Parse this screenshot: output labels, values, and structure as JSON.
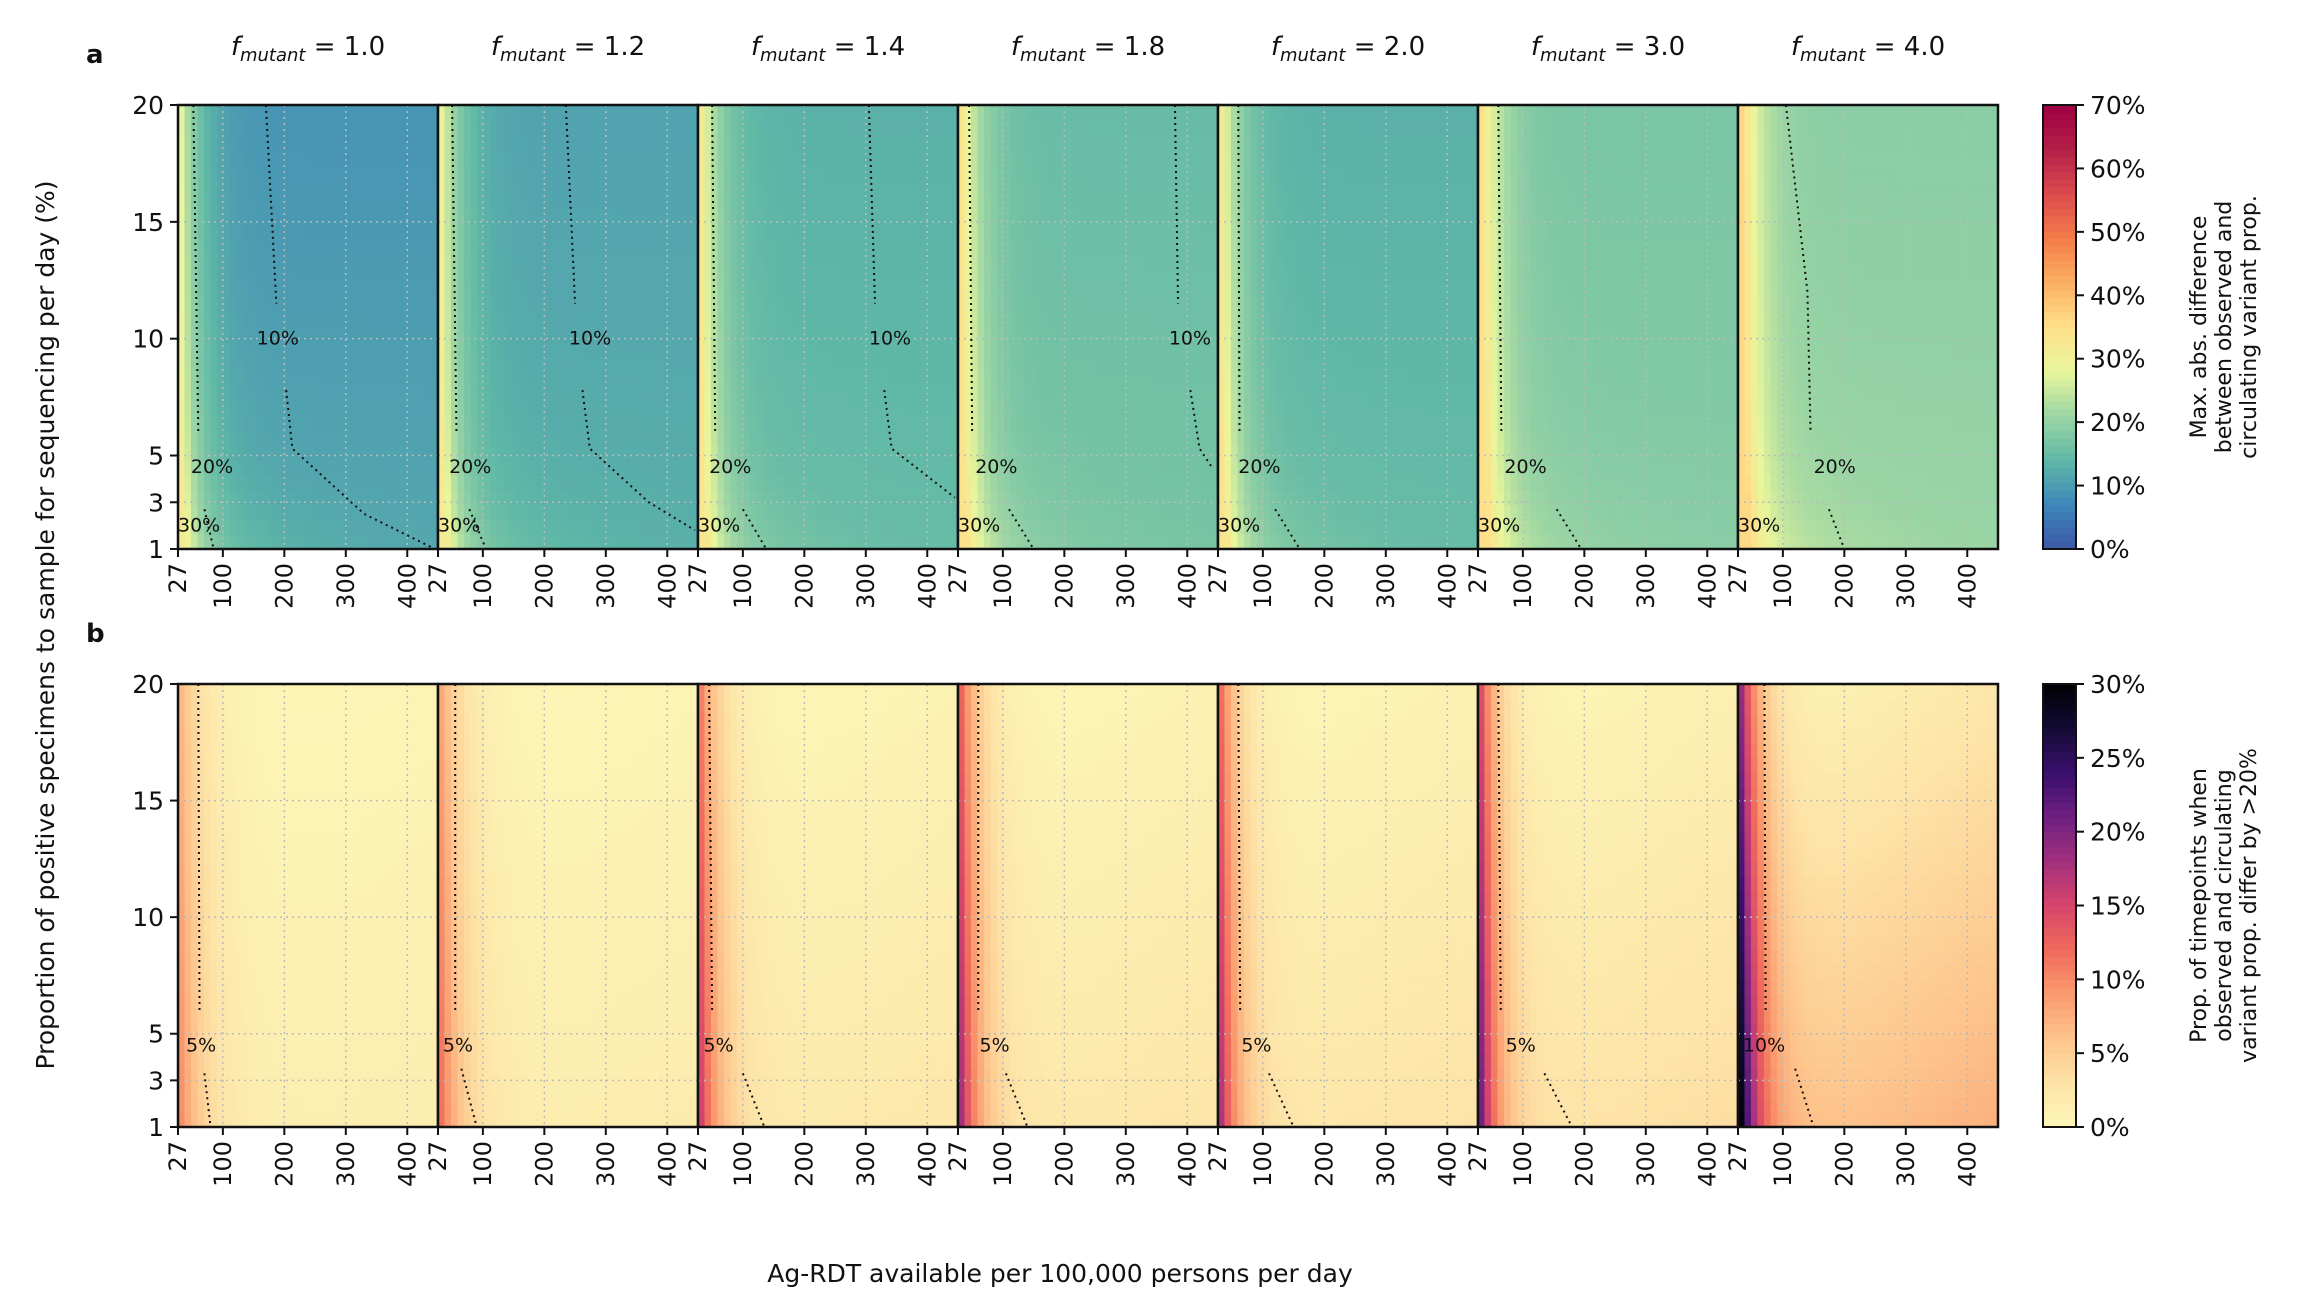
{
  "figure": {
    "shared_ylabel": "Proportion of positive specimens to sample for sequencing per day (%)",
    "shared_xlabel": "Ag-RDT available per 100,000 persons per day"
  },
  "chart_data": [
    {
      "type": "heatmap",
      "panel_label": "a",
      "xlabel": "Ag-RDT available per 100,000 persons per day",
      "ylabel": "Proportion of positive specimens to sample for sequencing per day (%)",
      "x_ticks": [
        27,
        100,
        200,
        300,
        400
      ],
      "y_ticks": [
        1,
        3,
        5,
        10,
        15,
        20
      ],
      "xlim": [
        27,
        450
      ],
      "ylim": [
        1,
        20
      ],
      "grid": true,
      "colorscale": "Spectral_r",
      "colorbar": {
        "label_lines": [
          "Max. abs. difference",
          "between observed and",
          "circulating variant prop."
        ],
        "min": 0,
        "max": 70,
        "ticks": [
          "0%",
          "10%",
          "20%",
          "30%",
          "40%",
          "50%",
          "60%",
          "70%"
        ],
        "colors": [
          "#3d57a5",
          "#3d86bb",
          "#5fb8a6",
          "#9bd5a4",
          "#e8f69b",
          "#fee08b",
          "#fbb062",
          "#f47c4a",
          "#dc4b4e",
          "#b41f48",
          "#9e0142"
        ]
      },
      "subplots": [
        {
          "title_main": "f",
          "title_sub": "mutant",
          "title_rest": " = 1.0",
          "low": 9,
          "base": 12,
          "edge": 28,
          "contours": [
            {
              "level": "10%",
              "points": [
                [
                  170,
                  20
                ],
                [
                  187,
                  11.5
                ]
              ],
              "points2": [
                [
                  203,
                  7.8
                ],
                [
                  213,
                  5.3
                ],
                [
                  330,
                  2.5
                ],
                [
                  445,
                  1
                ]
              ],
              "label_at": [
                155,
                10
              ]
            },
            {
              "level": "20%",
              "points": [
                [
                  52,
                  20
                ],
                [
                  60,
                  6
                ]
              ],
              "label_at": [
                48,
                4.5
              ]
            },
            {
              "level": "30%",
              "points": [
                [
                  27,
                  3.6
                ]
              ],
              "points2": [
                [
                  70,
                  2.7
                ],
                [
                  85,
                  1
                ]
              ],
              "label_at": [
                27,
                2
              ]
            }
          ]
        },
        {
          "title_main": "f",
          "title_sub": "mutant",
          "title_rest": " = 1.2",
          "low": 11,
          "base": 13,
          "edge": 28,
          "contours": [
            {
              "level": "10%",
              "points": [
                [
                  235,
                  20
                ],
                [
                  250,
                  11.5
                ]
              ],
              "points2": [
                [
                  262,
                  7.8
                ],
                [
                  274,
                  5.3
                ],
                [
                  370,
                  3
                ],
                [
                  445,
                  1.8
                ]
              ],
              "label_at": [
                240,
                10
              ]
            },
            {
              "level": "20%",
              "points": [
                [
                  50,
                  20
                ],
                [
                  57,
                  6
                ]
              ],
              "label_at": [
                45,
                4.5
              ]
            },
            {
              "level": "30%",
              "points": [
                [
                  27,
                  3.6
                ]
              ],
              "points2": [
                [
                  78,
                  2.7
                ],
                [
                  105,
                  1
                ]
              ],
              "label_at": [
                27,
                2
              ]
            }
          ]
        },
        {
          "title_main": "f",
          "title_sub": "mutant",
          "title_rest": " = 1.4",
          "low": 13,
          "base": 15,
          "edge": 29,
          "contours": [
            {
              "level": "10%",
              "points": [
                [
                  305,
                  20
                ],
                [
                  315,
                  11.5
                ]
              ],
              "points2": [
                [
                  330,
                  7.8
                ],
                [
                  342,
                  5.3
                ],
                [
                  445,
                  3.2
                ]
              ],
              "label_at": [
                305,
                10
              ]
            },
            {
              "level": "20%",
              "points": [
                [
                  50,
                  20
                ],
                [
                  55,
                  6
                ]
              ],
              "label_at": [
                45,
                4.5
              ]
            },
            {
              "level": "30%",
              "points": [
                [
                  27,
                  3.6
                ]
              ],
              "points2": [
                [
                  100,
                  2.7
                ],
                [
                  138,
                  1
                ]
              ],
              "label_at": [
                27,
                2
              ]
            }
          ]
        },
        {
          "title_main": "f",
          "title_sub": "mutant",
          "title_rest": " = 1.8",
          "low": 15,
          "base": 17,
          "edge": 30,
          "contours": [
            {
              "level": "10%",
              "points": [
                [
                  380,
                  20
                ],
                [
                  385,
                  11.5
                ]
              ],
              "points2": [
                [
                  405,
                  7.8
                ],
                [
                  420,
                  5.3
                ],
                [
                  440,
                  4.5
                ]
              ],
              "label_at": [
                370,
                10
              ]
            },
            {
              "level": "20%",
              "points": [
                [
                  45,
                  20
                ],
                [
                  50,
                  6
                ]
              ],
              "label_at": [
                55,
                4.5
              ]
            },
            {
              "level": "30%",
              "points": [
                [
                  27,
                  3.6
                ]
              ],
              "points2": [
                [
                  110,
                  2.7
                ],
                [
                  150,
                  1
                ]
              ],
              "label_at": [
                27,
                2
              ]
            }
          ]
        },
        {
          "title_main": "f",
          "title_sub": "mutant",
          "title_rest": " = 2.0",
          "low": 13,
          "base": 15,
          "edge": 30,
          "contours": [
            {
              "level": "20%",
              "points": [
                [
                  60,
                  20
                ],
                [
                  62,
                  6
                ]
              ],
              "label_at": [
                60,
                4.5
              ]
            },
            {
              "level": "30%",
              "points": [
                [
                  27,
                  3.6
                ]
              ],
              "points2": [
                [
                  120,
                  2.7
                ],
                [
                  160,
                  1
                ]
              ],
              "label_at": [
                27,
                2
              ]
            }
          ]
        },
        {
          "title_main": "f",
          "title_sub": "mutant",
          "title_rest": " = 3.0",
          "low": 17,
          "base": 19,
          "edge": 31,
          "contours": [
            {
              "level": "20%",
              "points": [
                [
                  60,
                  20
                ],
                [
                  65,
                  6
                ]
              ],
              "label_at": [
                70,
                4.5
              ]
            },
            {
              "level": "30%",
              "points": [
                [
                  27,
                  3.6
                ]
              ],
              "points2": [
                [
                  155,
                  2.7
                ],
                [
                  195,
                  1
                ]
              ],
              "label_at": [
                27,
                2
              ]
            }
          ]
        },
        {
          "title_main": "f",
          "title_sub": "mutant",
          "title_rest": " = 4.0",
          "low": 19,
          "base": 21,
          "edge": 32,
          "contours": [
            {
              "level": "20%",
              "points": [
                [
                  105,
                  20
                ],
                [
                  140,
                  12
                ],
                [
                  145,
                  6
                ]
              ],
              "label_at": [
                150,
                4.5
              ]
            },
            {
              "level": "30%",
              "points": [
                [
                  27,
                  3.6
                ]
              ],
              "points2": [
                [
                  175,
                  2.7
                ],
                [
                  200,
                  1
                ]
              ],
              "label_at": [
                27,
                2
              ]
            }
          ]
        }
      ]
    },
    {
      "type": "heatmap",
      "panel_label": "b",
      "xlabel": "Ag-RDT available per 100,000 persons per day",
      "ylabel": "Proportion of positive specimens to sample for sequencing per day (%)",
      "x_ticks": [
        27,
        100,
        200,
        300,
        400
      ],
      "y_ticks": [
        1,
        3,
        5,
        10,
        15,
        20
      ],
      "xlim": [
        27,
        450
      ],
      "ylim": [
        1,
        20
      ],
      "grid": true,
      "colorscale": "magma_r",
      "colorbar": {
        "label_lines": [
          "Prop. of timepoints when",
          "observed and circulating",
          "variant prop. differ by >20%"
        ],
        "min": 0,
        "max": 30,
        "ticks": [
          "0%",
          "5%",
          "10%",
          "15%",
          "20%",
          "25%",
          "30%"
        ],
        "colors": [
          "#fcf7b8",
          "#fde3a7",
          "#fdc48c",
          "#fa9b6e",
          "#f06a5c",
          "#d6456b",
          "#a3307e",
          "#6e2080",
          "#3a0f6e",
          "#140c35",
          "#000004"
        ]
      },
      "subplots": [
        {
          "title_main": "f",
          "title_sub": "mutant",
          "title_rest": " = 1.0",
          "peak": 10,
          "spread": 30,
          "tail": 0.5,
          "contours": [
            {
              "level": "5%",
              "points": [
                [
                  27,
                  20
                ]
              ],
              "points2": [
                [
                  60,
                  20
                ],
                [
                  62,
                  6
                ]
              ],
              "points3": [
                [
                  70,
                  3.3
                ],
                [
                  80,
                  1
                ]
              ],
              "label_at": [
                40,
                4.5
              ]
            }
          ]
        },
        {
          "title_main": "f",
          "title_sub": "mutant",
          "title_rest": " = 1.2",
          "peak": 12,
          "spread": 32,
          "tail": 0.6,
          "contours": [
            {
              "level": "5%",
              "points": [
                [
                  27,
                  20
                ]
              ],
              "points2": [
                [
                  55,
                  20
                ],
                [
                  55,
                  6
                ]
              ],
              "points3": [
                [
                  65,
                  3.5
                ],
                [
                  90,
                  1
                ]
              ],
              "label_at": [
                35,
                4.5
              ]
            }
          ]
        },
        {
          "title_main": "f",
          "title_sub": "mutant",
          "title_rest": " = 1.4",
          "peak": 16,
          "spread": 36,
          "tail": 0.8,
          "contours": [
            {
              "level": "5%",
              "points": [
                [
                  45,
                  20
                ],
                [
                  50,
                  6
                ]
              ],
              "points3": [
                [
                  100,
                  3.3
                ],
                [
                  135,
                  1
                ]
              ],
              "label_at": [
                36,
                4.5
              ]
            }
          ]
        },
        {
          "title_main": "f",
          "title_sub": "mutant",
          "title_rest": " = 1.8",
          "peak": 19,
          "spread": 38,
          "tail": 0.9,
          "contours": [
            {
              "level": "5%",
              "points": [
                [
                  27,
                  20
                ]
              ],
              "points2": [
                [
                  60,
                  20
                ],
                [
                  60,
                  6
                ]
              ],
              "points3": [
                [
                  105,
                  3.3
                ],
                [
                  140,
                  1
                ]
              ],
              "label_at": [
                62,
                4.5
              ]
            }
          ]
        },
        {
          "title_main": "f",
          "title_sub": "mutant",
          "title_rest": " = 2.0",
          "peak": 18,
          "spread": 40,
          "tail": 1.0,
          "contours": [
            {
              "level": "5%",
              "points": [
                [
                  27,
                  20
                ]
              ],
              "points2": [
                [
                  60,
                  20
                ],
                [
                  63,
                  6
                ]
              ],
              "points3": [
                [
                  110,
                  3.3
                ],
                [
                  150,
                  1
                ]
              ],
              "label_at": [
                65,
                4.5
              ]
            }
          ]
        },
        {
          "title_main": "f",
          "title_sub": "mutant",
          "title_rest": " = 3.0",
          "peak": 22,
          "spread": 42,
          "tail": 1.2,
          "contours": [
            {
              "level": "5%",
              "points": [
                [
                  27,
                  20
                ]
              ],
              "points2": [
                [
                  60,
                  20
                ],
                [
                  64,
                  6
                ]
              ],
              "points3": [
                [
                  135,
                  3.3
                ],
                [
                  180,
                  1
                ]
              ],
              "label_at": [
                72,
                4.5
              ]
            }
          ]
        },
        {
          "title_main": "f",
          "title_sub": "mutant",
          "title_rest": " = 4.0",
          "peak": 29,
          "spread": 40,
          "tail": 2.5,
          "contours": [
            {
              "level": "10%",
              "points": [
                [
                  27,
                  20
                ]
              ],
              "points2": [
                [
                  70,
                  20
                ],
                [
                  72,
                  6
                ]
              ],
              "points3": [
                [
                  120,
                  3.5
                ],
                [
                  150,
                  1
                ]
              ],
              "label_at": [
                35,
                4.5
              ]
            }
          ]
        }
      ]
    }
  ]
}
